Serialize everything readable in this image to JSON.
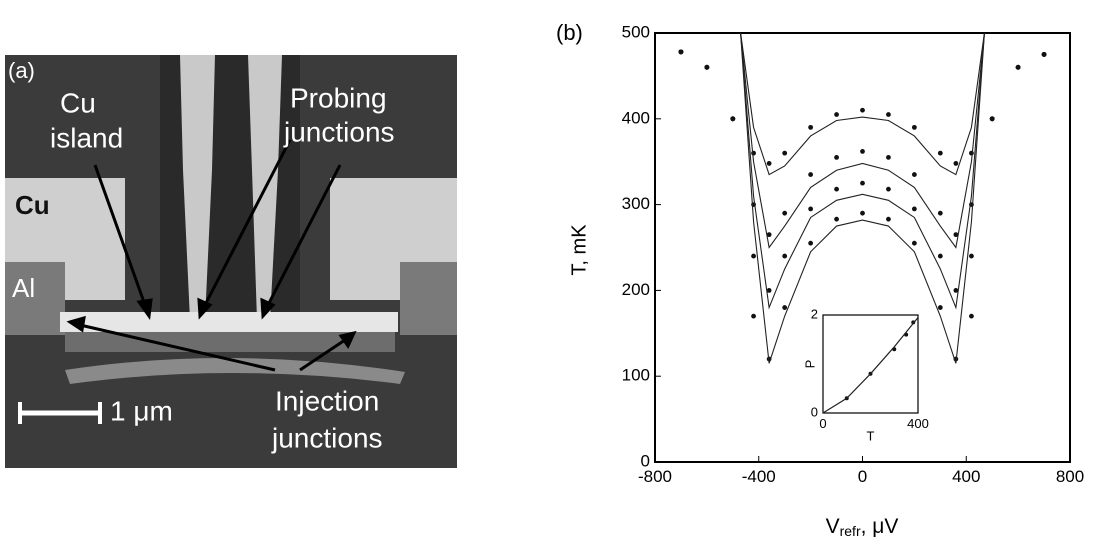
{
  "panel_a": {
    "label": "(a)",
    "cu_island": [
      "Cu",
      "island"
    ],
    "probing": [
      "Probing",
      "junctions"
    ],
    "cu": "Cu",
    "al": "Al",
    "injection": [
      "Injection",
      "junctions"
    ],
    "scale": "1 μm"
  },
  "chart_data": [
    {
      "type": "scatter-line",
      "panel_label": "(b)",
      "ylabel": "T,  mK",
      "xlabel": {
        "main": "V",
        "sub": "refr",
        "unit": ", μV"
      },
      "xlim": [
        -800,
        800
      ],
      "ylim": [
        0,
        500
      ],
      "xticks": [
        -800,
        -400,
        0,
        400,
        800
      ],
      "yticks": [
        0,
        100,
        200,
        300,
        400,
        500
      ],
      "series": [
        {
          "style": "dots",
          "color": "#111111",
          "x": [
            -700,
            -600,
            -500,
            -420,
            -360,
            -300,
            -200,
            -100,
            0,
            100,
            200,
            300,
            360,
            420,
            500,
            600,
            700
          ],
          "values": [
            478,
            460,
            400,
            360,
            348,
            360,
            390,
            405,
            410,
            405,
            390,
            360,
            348,
            360,
            400,
            460,
            475
          ]
        },
        {
          "style": "dots",
          "color": "#111111",
          "x": [
            -700,
            -600,
            -500,
            -420,
            -360,
            -300,
            -200,
            -100,
            0,
            100,
            200,
            300,
            360,
            420,
            500,
            600,
            700
          ],
          "values": [
            478,
            460,
            400,
            300,
            265,
            290,
            335,
            355,
            362,
            355,
            335,
            290,
            265,
            300,
            400,
            460,
            475
          ]
        },
        {
          "style": "dots",
          "color": "#111111",
          "x": [
            -700,
            -600,
            -500,
            -420,
            -360,
            -300,
            -200,
            -100,
            0,
            100,
            200,
            300,
            360,
            420,
            500,
            600,
            700
          ],
          "values": [
            478,
            460,
            400,
            240,
            200,
            240,
            295,
            318,
            325,
            318,
            295,
            240,
            200,
            240,
            400,
            460,
            475
          ]
        },
        {
          "style": "dots",
          "color": "#111111",
          "x": [
            -700,
            -600,
            -500,
            -420,
            -360,
            -300,
            -200,
            -100,
            0,
            100,
            200,
            300,
            360,
            420,
            500,
            600,
            700
          ],
          "values": [
            478,
            460,
            400,
            170,
            120,
            180,
            255,
            283,
            290,
            283,
            255,
            180,
            120,
            170,
            400,
            460,
            475
          ]
        },
        {
          "style": "line",
          "color": "#222222",
          "x": [
            -470,
            -420,
            -360,
            -300,
            -200,
            -100,
            0,
            100,
            200,
            300,
            360,
            420,
            470
          ],
          "values": [
            500,
            390,
            335,
            345,
            380,
            398,
            402,
            398,
            380,
            345,
            335,
            390,
            500
          ]
        },
        {
          "style": "line",
          "color": "#222222",
          "x": [
            -470,
            -420,
            -360,
            -300,
            -200,
            -100,
            0,
            100,
            200,
            300,
            360,
            420,
            470
          ],
          "values": [
            500,
            350,
            250,
            275,
            320,
            340,
            348,
            340,
            320,
            275,
            250,
            350,
            500
          ]
        },
        {
          "style": "line",
          "color": "#222222",
          "x": [
            -470,
            -420,
            -360,
            -300,
            -200,
            -100,
            0,
            100,
            200,
            300,
            360,
            420,
            470
          ],
          "values": [
            500,
            310,
            180,
            225,
            285,
            305,
            312,
            305,
            285,
            225,
            180,
            310,
            500
          ]
        },
        {
          "style": "line",
          "color": "#222222",
          "x": [
            -470,
            -420,
            -360,
            -300,
            -200,
            -100,
            0,
            100,
            200,
            300,
            360,
            420,
            470
          ],
          "values": [
            500,
            280,
            115,
            170,
            245,
            275,
            282,
            275,
            245,
            170,
            115,
            280,
            500
          ]
        }
      ]
    },
    {
      "type": "scatter-line",
      "ylabel": "P",
      "xlabel": "T",
      "xlim": [
        0,
        400
      ],
      "ylim": [
        0,
        2
      ],
      "xticks": [
        0,
        400
      ],
      "yticks": [
        0,
        2
      ],
      "series": [
        {
          "style": "dots",
          "color": "#111111",
          "x": [
            100,
            200,
            300,
            350,
            380
          ],
          "values": [
            0.3,
            0.8,
            1.3,
            1.6,
            1.85
          ]
        },
        {
          "style": "line",
          "color": "#222222",
          "x": [
            0,
            100,
            200,
            300,
            400
          ],
          "values": [
            0,
            0.3,
            0.8,
            1.35,
            1.95
          ]
        }
      ]
    }
  ]
}
